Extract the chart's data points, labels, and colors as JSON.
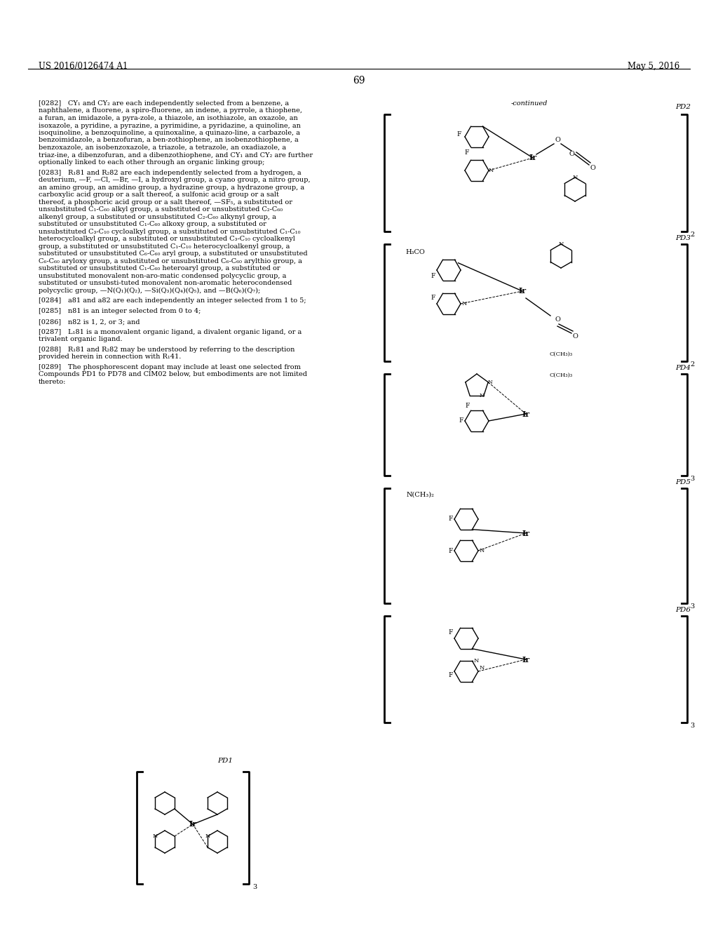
{
  "header_left": "US 2016/0126474 A1",
  "header_right": "May 5, 2016",
  "page_number": "69",
  "continued_label": "-continued",
  "background_color": "#ffffff",
  "text_color": "#000000",
  "body_text_fontsize": 7.2,
  "header_fontsize": 8.5,
  "page_num_fontsize": 10,
  "compound_label_fontsize": 8,
  "left_column_text": "[0282] CY₁ and CY₂ are each independently selected from a benzene, a naphthalene, a fluorene, a spiro-fluorene, an indene, a pyrrole, a thiophene, a furan, an imidazole, a pyrazole, a thiazole, an isothiazole, an oxazole, an isoxazole, a pyridine, a pyrazine, a pyrimidine, a pyridazine, a quinoline, an isoquinoline, a benzoquinoline, a quinoxaline, a quinazoline, a carbazole, a benzoimidazole, a benzofuran, a benzothiophene, an isobenzothiophene, a benzoxazole, an isobenzoxazole, a triazole, a tetrazole, an oxadiazole, a triazine, a dibenzofuran, and a dibenzothiophene, and CY₁ and CY₂ are further optionally linked to each other through an organic linking group;\n\n[0283] R₁81 and R₂82 are each independently selected from a hydrogen, a deuterium, —F, —Cl, —Br, —I, a hydroxyl group, a cyano group, a nitro group, an amino group, an amidino group, a hydrazine group, a hydrazone group, a carboxylic acid group or a salt thereof, a sulfonic acid group or a salt thereof, a phosphoric acid group or a salt thereof, —SF₅, a substituted or unsubstituted C₁-C₆₀ alkyl group, a substituted or unsubstituted C₂-C₆₀ alkenyl group, a substituted or unsubstituted C₂-C₆₀ alkynyl group, a substituted or unsubstituted C₁-C₆₀ alkoxy group, a substituted or unsubstituted C₃-C₁₀ cycloalkyl group, a substituted or unsubstituted C₁-C₁₀ heterocycloalkyl group, a substituted or unsubstituted C₃-C₁₀ cycloalkenyl group, a substituted or unsubstituted C₁-C₁₀ heterocycloalkenyl group, a substituted or unsubstituted C₆-C₆₀ aryl group, a substituted or unsubstituted C₆-C₆₀ aryloxy group, a substituted or unsubstituted C₆-C₆₀ arylthio group, a substituted or unsubstituted C₁-C₆₀ heteroaryl group, a substituted or unsubstituted monovalent non-aromatic condensed polycyclic group, a substituted or unsubstituted monovalent non-aromatic heterocondensed polycyclic group, —N(Q₁)(Q₂), —Si(Q₃)(Q₄)(Q₅), and —B(Q₆)(Q₇);\n\n[0284] a81 and a82 are each independently an integer selected from 1 to 5;\n\n[0285] n81 is an integer selected from 0 to 4;\n\n[0286] n82 is 1, 2, or 3; and\n\n[0287] L₁81 is a monovalent organic ligand, a divalent organic ligand, or a trivalent organic ligand.\n\n[0288] R₁81 and R₂82 may be understood by referring to the description provided herein in connection with R₁41.\n\n[0289] The phosphorescent dopant may include at least one selected from Compounds PD1 to PD78 and ClM02 below, but embodiments are not limited thereto:"
}
